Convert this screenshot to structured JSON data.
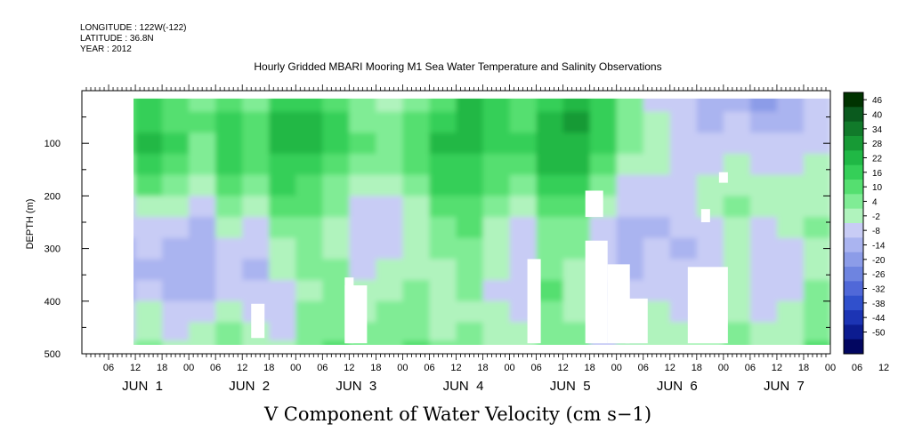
{
  "header": {
    "longitude": "LONGITUDE : 122W(-122)",
    "latitude": "LATITUDE : 36.8N",
    "year": "YEAR : 2012"
  },
  "chart_data": {
    "type": "heatmap",
    "title": "Hourly Gridded MBARI Mooring M1 Sea Water Temperature and Salinity Observations",
    "xlabel": "V Component of Water Velocity (cm s−1)",
    "ylabel": "DEPTH (m)",
    "y_axis": {
      "range": [
        0,
        500
      ],
      "ticks": [
        100,
        200,
        300,
        400,
        500
      ],
      "reversed": true
    },
    "x_axis": {
      "hour_ticks": [
        "06",
        "12",
        "18",
        "00",
        "06",
        "12",
        "18",
        "00",
        "06",
        "12",
        "18",
        "00",
        "06",
        "12",
        "18",
        "00",
        "06",
        "12",
        "18",
        "00",
        "06",
        "12",
        "18",
        "00",
        "06",
        "12",
        "18",
        "00",
        "06",
        "12",
        "18",
        "00"
      ],
      "day_labels": [
        "JUN  1",
        "JUN  2",
        "JUN  3",
        "JUN  4",
        "JUN  5",
        "JUN  6",
        "JUN  7"
      ]
    },
    "colorbar": {
      "labels": [
        "46",
        "40",
        "34",
        "28",
        "22",
        "16",
        "10",
        "4",
        "-2",
        "-8",
        "-14",
        "-20",
        "-26",
        "-32",
        "-38",
        "-44",
        "-50"
      ],
      "colors": [
        "#003300",
        "#0a5a1e",
        "#117a2a",
        "#179a35",
        "#20b845",
        "#35cf58",
        "#55df70",
        "#80ec95",
        "#b0f3bd",
        "#c8ccf5",
        "#aab4f0",
        "#8c9ce8",
        "#6e84e0",
        "#5068d8",
        "#3050cc",
        "#1c34b4",
        "#0c1c90",
        "#020660"
      ]
    },
    "depth_rows": [
      20,
      60,
      100,
      140,
      180,
      220,
      260,
      300,
      340,
      380,
      420,
      460,
      490
    ],
    "time_start_hour": 6,
    "time_end_hour": 168,
    "v_values": [
      [
        8,
        14,
        10,
        4,
        12,
        6,
        16,
        18,
        10,
        2,
        -2,
        6,
        12,
        20,
        14,
        8,
        18,
        22,
        16,
        4,
        -6,
        -10,
        -14,
        -12,
        -18,
        -16,
        -10
      ],
      [
        10,
        18,
        12,
        8,
        14,
        10,
        20,
        22,
        16,
        6,
        2,
        10,
        18,
        24,
        18,
        12,
        22,
        26,
        18,
        6,
        -4,
        -8,
        -12,
        -10,
        -14,
        -12,
        -8
      ],
      [
        12,
        20,
        14,
        6,
        16,
        12,
        22,
        20,
        14,
        8,
        4,
        12,
        22,
        20,
        16,
        14,
        24,
        24,
        14,
        4,
        -2,
        -6,
        -10,
        -8,
        -10,
        -10,
        -6
      ],
      [
        6,
        16,
        10,
        2,
        14,
        10,
        18,
        16,
        10,
        6,
        2,
        8,
        18,
        16,
        12,
        10,
        20,
        20,
        10,
        0,
        -4,
        -6,
        -8,
        -4,
        -6,
        -8,
        -4
      ],
      [
        -2,
        8,
        4,
        -4,
        10,
        4,
        14,
        12,
        6,
        0,
        -4,
        4,
        16,
        14,
        8,
        4,
        14,
        14,
        4,
        -6,
        -8,
        -6,
        -4,
        0,
        -2,
        -4,
        -2
      ],
      [
        -8,
        0,
        -4,
        -10,
        4,
        -2,
        10,
        8,
        2,
        -6,
        -8,
        0,
        12,
        12,
        4,
        -2,
        10,
        8,
        -2,
        -10,
        -10,
        -8,
        -4,
        2,
        -4,
        -2,
        0
      ],
      [
        -10,
        -6,
        -8,
        -12,
        -2,
        -6,
        4,
        6,
        -2,
        -8,
        -10,
        -4,
        6,
        8,
        0,
        -6,
        6,
        4,
        -6,
        -12,
        -12,
        -10,
        -6,
        0,
        -6,
        -4,
        2
      ],
      [
        -12,
        -10,
        -12,
        -14,
        -6,
        -10,
        0,
        4,
        -4,
        -10,
        -6,
        -2,
        2,
        6,
        -2,
        -8,
        4,
        2,
        -8,
        -14,
        -10,
        -12,
        -8,
        -2,
        -8,
        -6,
        0
      ],
      [
        -14,
        -12,
        -16,
        -14,
        -8,
        -12,
        -4,
        2,
        2,
        -8,
        -4,
        0,
        -2,
        4,
        -4,
        -10,
        6,
        0,
        -10,
        -12,
        -8,
        -10,
        -10,
        -4,
        -10,
        -8,
        -2
      ],
      [
        -12,
        -8,
        -14,
        -12,
        -6,
        -10,
        -6,
        0,
        6,
        -4,
        0,
        2,
        -4,
        2,
        -6,
        -8,
        8,
        -2,
        -12,
        -10,
        -6,
        -8,
        -8,
        -2,
        -8,
        -6,
        2
      ],
      [
        -10,
        -4,
        -10,
        -8,
        -4,
        -8,
        -8,
        2,
        4,
        -2,
        2,
        4,
        -2,
        0,
        -4,
        -6,
        6,
        0,
        -10,
        -8,
        -4,
        -6,
        -6,
        0,
        -6,
        -4,
        4
      ],
      [
        -6,
        0,
        -6,
        -4,
        2,
        -4,
        -6,
        4,
        6,
        2,
        4,
        6,
        0,
        2,
        -2,
        -4,
        4,
        2,
        -8,
        -6,
        -2,
        -4,
        -4,
        2,
        -4,
        -2,
        6
      ],
      [
        -4,
        2,
        -2,
        0,
        4,
        -2,
        -4,
        6,
        8,
        4,
        6,
        8,
        2,
        4,
        0,
        -2,
        6,
        4,
        -6,
        -4,
        0,
        -2,
        -2,
        4,
        -2,
        0,
        8
      ]
    ]
  }
}
